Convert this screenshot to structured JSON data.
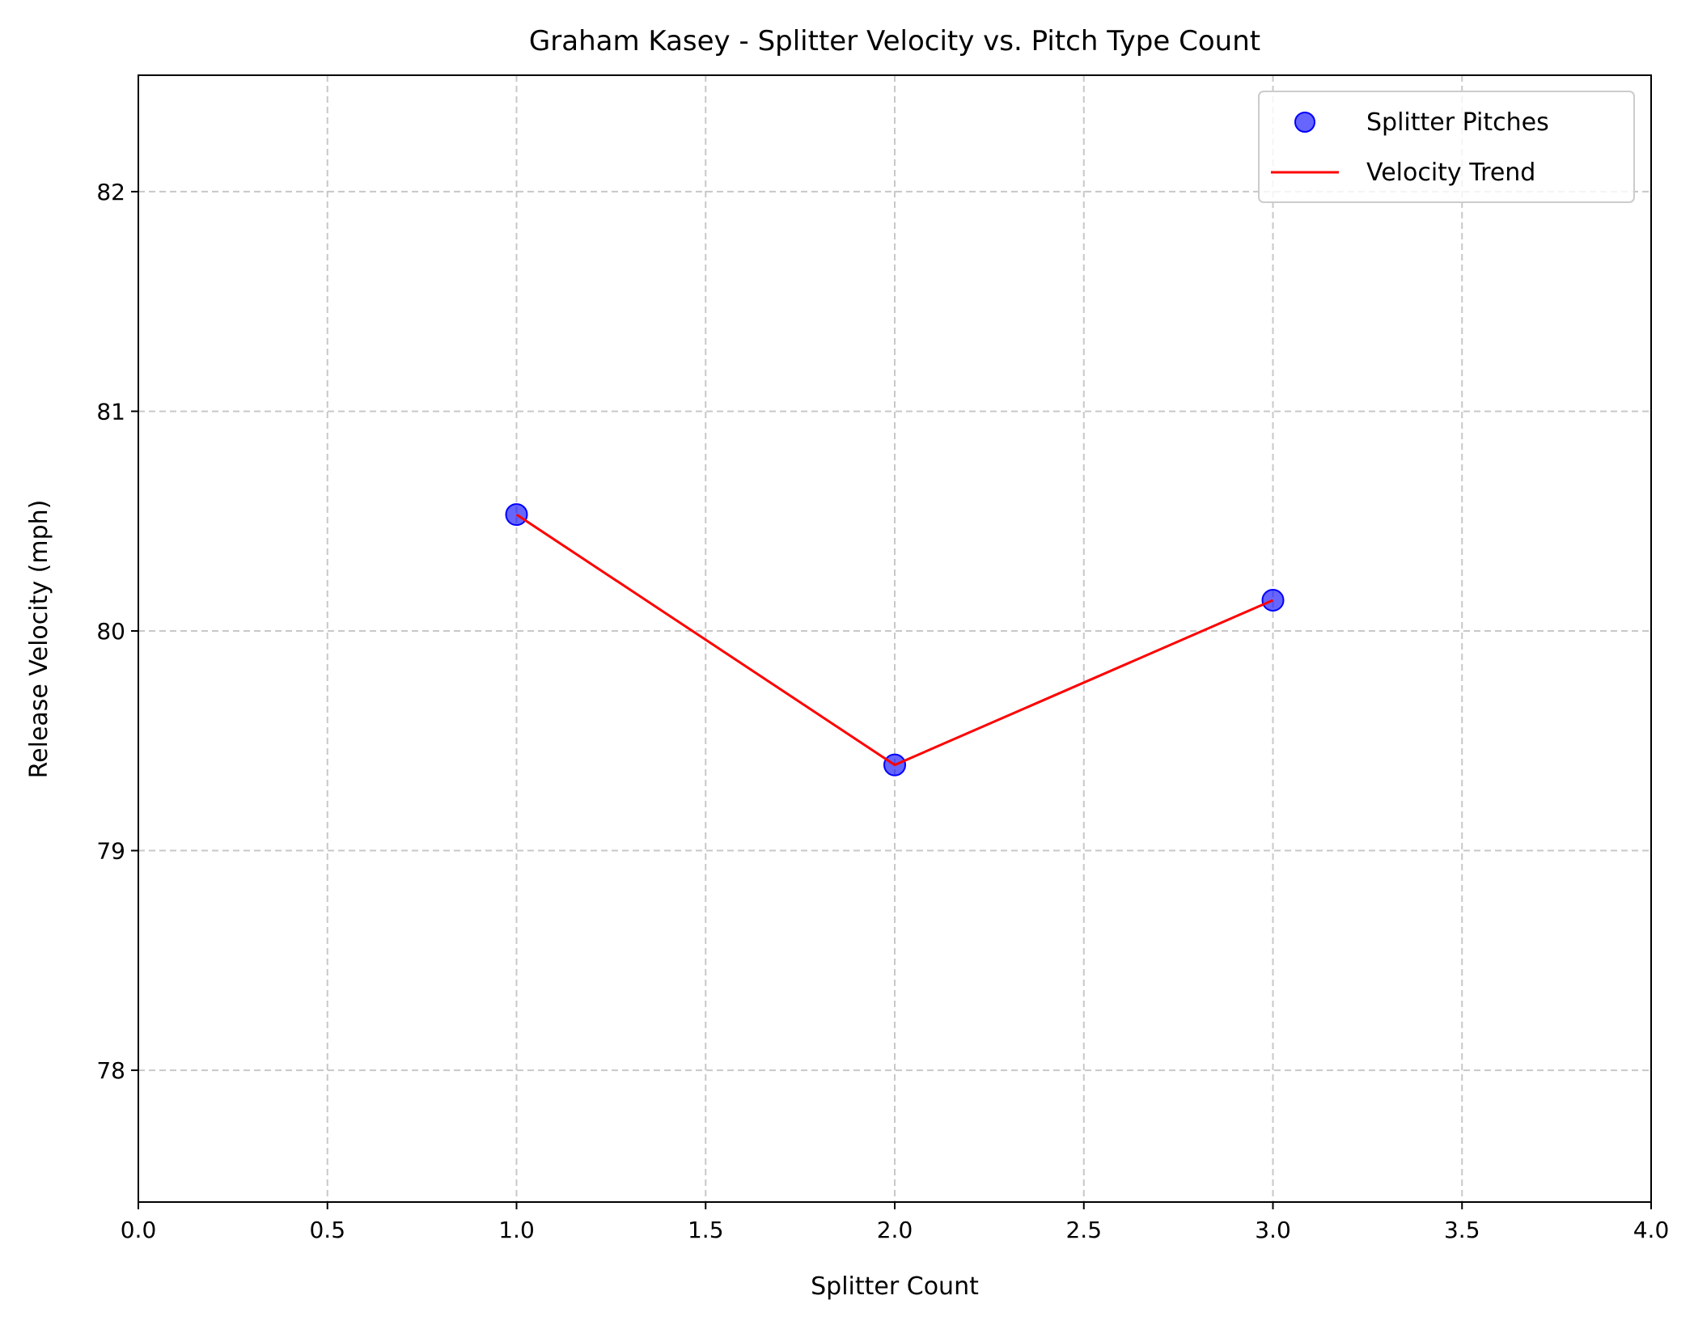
{
  "chart_data": {
    "type": "scatter",
    "title": "Graham Kasey - Splitter Velocity vs. Pitch Type Count",
    "xlabel": "Splitter Count",
    "ylabel": "Release Velocity (mph)",
    "xlim": [
      0,
      4
    ],
    "ylim": [
      77.4,
      82.53
    ],
    "x_ticks": [
      0,
      0.5,
      1,
      1.5,
      2,
      2.5,
      3,
      3.5,
      4
    ],
    "x_tick_labels": [
      "0.0",
      "0.5",
      "1.0",
      "1.5",
      "2.0",
      "2.5",
      "3.0",
      "3.5",
      "4.0"
    ],
    "y_ticks": [
      78,
      79,
      80,
      81,
      82
    ],
    "y_tick_labels": [
      "78",
      "79",
      "80",
      "81",
      "82"
    ],
    "grid": true,
    "legend_position": "top-right",
    "series": [
      {
        "name": "Splitter Pitches",
        "kind": "scatter",
        "color": "#0000ff",
        "x": [
          1,
          2,
          3
        ],
        "y": [
          80.53,
          79.39,
          80.14
        ]
      },
      {
        "name": "Velocity Trend",
        "kind": "line",
        "color": "#ff0000",
        "x": [
          1,
          2,
          3
        ],
        "y": [
          80.53,
          79.39,
          80.14
        ]
      }
    ]
  }
}
